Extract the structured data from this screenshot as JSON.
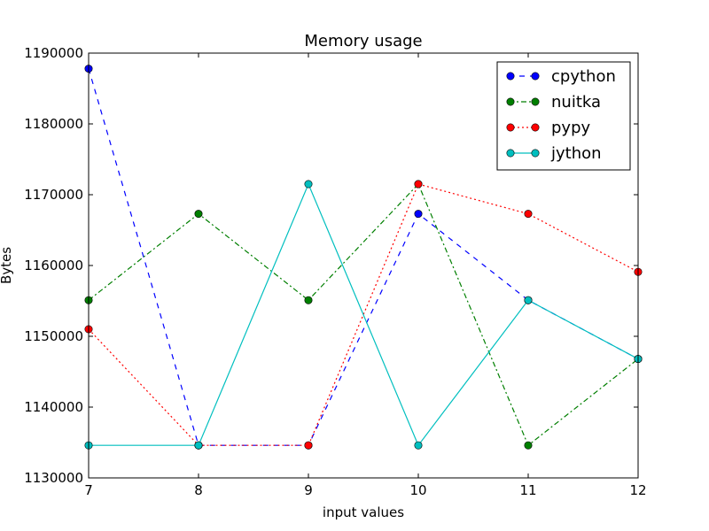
{
  "chart_data": {
    "type": "line",
    "title": "Memory usage",
    "xlabel": "input values",
    "ylabel": "Bytes",
    "xlim": [
      7,
      12
    ],
    "ylim": [
      1130000,
      1190000
    ],
    "xticks": [
      7,
      8,
      9,
      10,
      11,
      12
    ],
    "yticks": [
      1130000,
      1140000,
      1150000,
      1160000,
      1170000,
      1180000,
      1190000
    ],
    "grid": false,
    "legend_position": "top-right",
    "x": [
      7,
      8,
      9,
      10,
      11,
      12
    ],
    "series": [
      {
        "name": "cpython",
        "color": "#0000ff",
        "linestyle": "dashed",
        "values": [
          1187800,
          1134600,
          1134600,
          1167300,
          1155100,
          1146800
        ]
      },
      {
        "name": "nuitka",
        "color": "#007f00",
        "linestyle": "dashdot",
        "values": [
          1155100,
          1167300,
          1155100,
          1171500,
          1134600,
          1146800
        ]
      },
      {
        "name": "pypy",
        "color": "#ff0000",
        "linestyle": "dotted",
        "values": [
          1151000,
          1134600,
          1134600,
          1171500,
          1167300,
          1159100
        ]
      },
      {
        "name": "jython",
        "color": "#00bfbf",
        "linestyle": "solid",
        "values": [
          1134600,
          1134600,
          1171500,
          1134600,
          1155100,
          1146800
        ]
      }
    ]
  }
}
